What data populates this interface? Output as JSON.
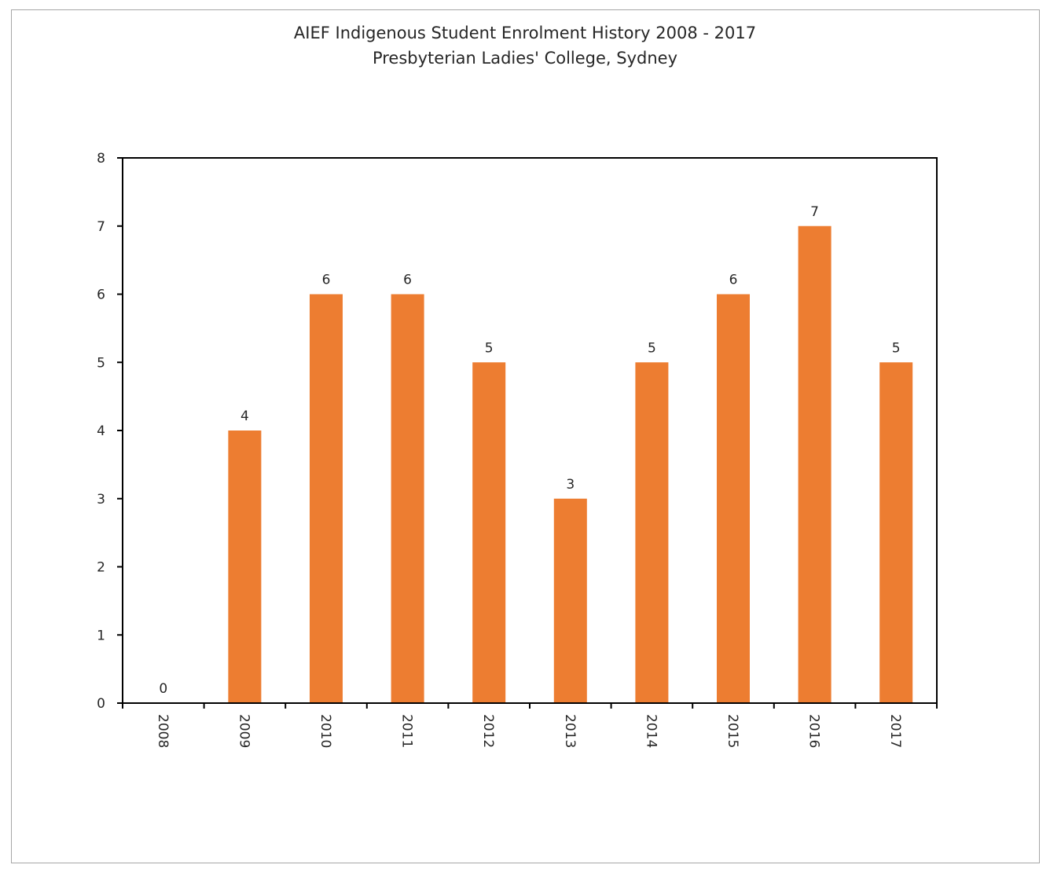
{
  "chart_data": {
    "type": "bar",
    "title": "AIEF Indigenous Student Enrolment History 2008  - 2017",
    "subtitle": "Presbyterian Ladies' College, Sydney",
    "categories": [
      "2008",
      "2009",
      "2010",
      "2011",
      "2012",
      "2013",
      "2014",
      "2015",
      "2016",
      "2017"
    ],
    "values": [
      0,
      4,
      6,
      6,
      5,
      3,
      5,
      6,
      7,
      5
    ],
    "xlabel": "",
    "ylabel": "",
    "ylim": [
      0,
      8
    ],
    "yticks": [
      0,
      1,
      2,
      3,
      4,
      5,
      6,
      7,
      8
    ],
    "data_labels": true,
    "grid": false,
    "legend": "none",
    "colors": {
      "bar": "#ed7d31",
      "axis": "#000000",
      "text": "#262626",
      "frame": "#a6a6a6"
    }
  }
}
